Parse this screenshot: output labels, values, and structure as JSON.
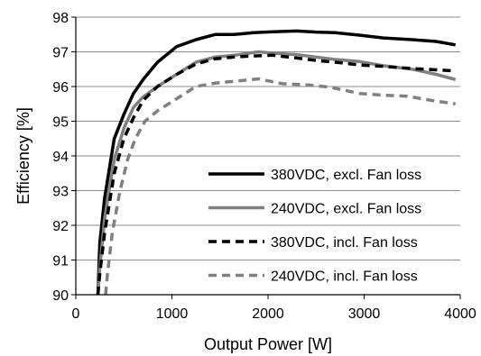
{
  "chart_data": {
    "type": "line",
    "title": "",
    "xlabel": "Output Power [W]",
    "ylabel": "Efficiency [%]",
    "xlim": [
      0,
      4000
    ],
    "ylim": [
      90,
      98
    ],
    "xticks": [
      0,
      1000,
      2000,
      3000,
      4000
    ],
    "yticks": [
      90,
      91,
      92,
      93,
      94,
      95,
      96,
      97,
      98
    ],
    "grid": "horizontal",
    "legend_position": "bottom-right",
    "series": [
      {
        "name": "380VDC, excl. Fan loss",
        "color": "#000000",
        "dash": "solid",
        "x": [
          230,
          250,
          300,
          400,
          500,
          600,
          700,
          850,
          1050,
          1250,
          1450,
          1650,
          1850,
          2050,
          2300,
          2500,
          2700,
          2950,
          3200,
          3500,
          3750,
          3950
        ],
        "y": [
          90.0,
          91.5,
          92.8,
          94.5,
          95.2,
          95.8,
          96.2,
          96.7,
          97.15,
          97.35,
          97.5,
          97.5,
          97.55,
          97.58,
          97.6,
          97.57,
          97.55,
          97.48,
          97.4,
          97.35,
          97.3,
          97.2
        ]
      },
      {
        "name": "240VDC, excl. Fan loss",
        "color": "#808080",
        "dash": "solid",
        "x": [
          230,
          250,
          300,
          400,
          500,
          600,
          700,
          850,
          1050,
          1250,
          1450,
          1650,
          1900,
          2100,
          2300,
          2500,
          2700,
          2950,
          3200,
          3500,
          3750,
          3950
        ],
        "y": [
          90.0,
          90.8,
          92.2,
          93.9,
          94.8,
          95.4,
          95.7,
          96.0,
          96.35,
          96.7,
          96.85,
          96.9,
          97.0,
          96.95,
          96.92,
          96.85,
          96.78,
          96.72,
          96.6,
          96.5,
          96.35,
          96.2
        ]
      },
      {
        "name": "380VDC, incl. Fan loss",
        "color": "#000000",
        "dash": "dashed",
        "x": [
          230,
          250,
          300,
          400,
          500,
          600,
          700,
          850,
          1050,
          1250,
          1450,
          1650,
          1850,
          2050,
          2300,
          2500,
          2700,
          2950,
          3200,
          3500,
          3750,
          3950
        ],
        "y": [
          90.0,
          90.6,
          91.8,
          93.5,
          94.5,
          95.1,
          95.6,
          96.0,
          96.35,
          96.65,
          96.8,
          96.85,
          96.88,
          96.9,
          96.82,
          96.75,
          96.7,
          96.62,
          96.58,
          96.52,
          96.48,
          96.45
        ]
      },
      {
        "name": "240VDC, incl. Fan loss",
        "color": "#808080",
        "dash": "dashed",
        "x": [
          310,
          330,
          380,
          460,
          540,
          620,
          720,
          850,
          1050,
          1250,
          1450,
          1650,
          1900,
          2150,
          2400,
          2650,
          2950,
          3200,
          3450,
          3700,
          3950
        ],
        "y": [
          90.0,
          90.6,
          91.8,
          93.0,
          93.9,
          94.5,
          95.0,
          95.3,
          95.65,
          96.0,
          96.1,
          96.15,
          96.22,
          96.08,
          96.05,
          95.98,
          95.8,
          95.75,
          95.72,
          95.6,
          95.5
        ]
      }
    ]
  }
}
